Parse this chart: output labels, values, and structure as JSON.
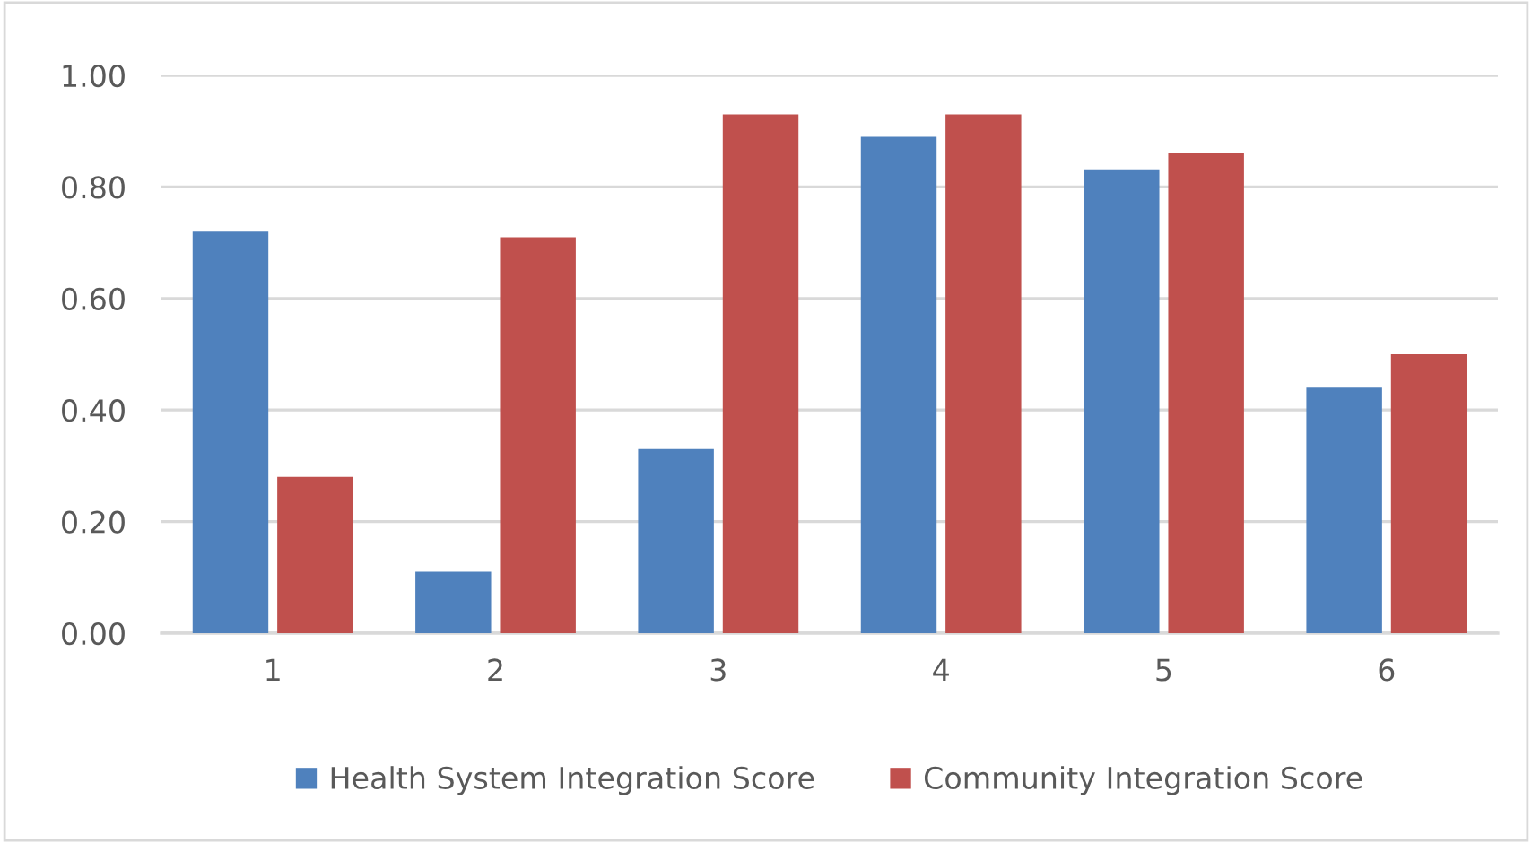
{
  "chart_data": {
    "type": "bar",
    "categories": [
      "1",
      "2",
      "3",
      "4",
      "5",
      "6"
    ],
    "series": [
      {
        "name": "Health System Integration Score",
        "color": "#4f81bd",
        "values": [
          0.72,
          0.11,
          0.33,
          0.89,
          0.83,
          0.44
        ]
      },
      {
        "name": "Community Integration Score",
        "color": "#c0504d",
        "values": [
          0.28,
          0.71,
          0.93,
          0.93,
          0.86,
          0.5
        ]
      }
    ],
    "ylim": [
      0,
      1
    ],
    "yticks": [
      {
        "value": 0,
        "label": "0.00"
      },
      {
        "value": 0.2,
        "label": "0.20"
      },
      {
        "value": 0.4,
        "label": "0.40"
      },
      {
        "value": 0.6,
        "label": "0.60"
      },
      {
        "value": 0.8,
        "label": "0.80"
      },
      {
        "value": 1,
        "label": "1.00"
      }
    ],
    "grid": "y",
    "legend": "bottom"
  }
}
